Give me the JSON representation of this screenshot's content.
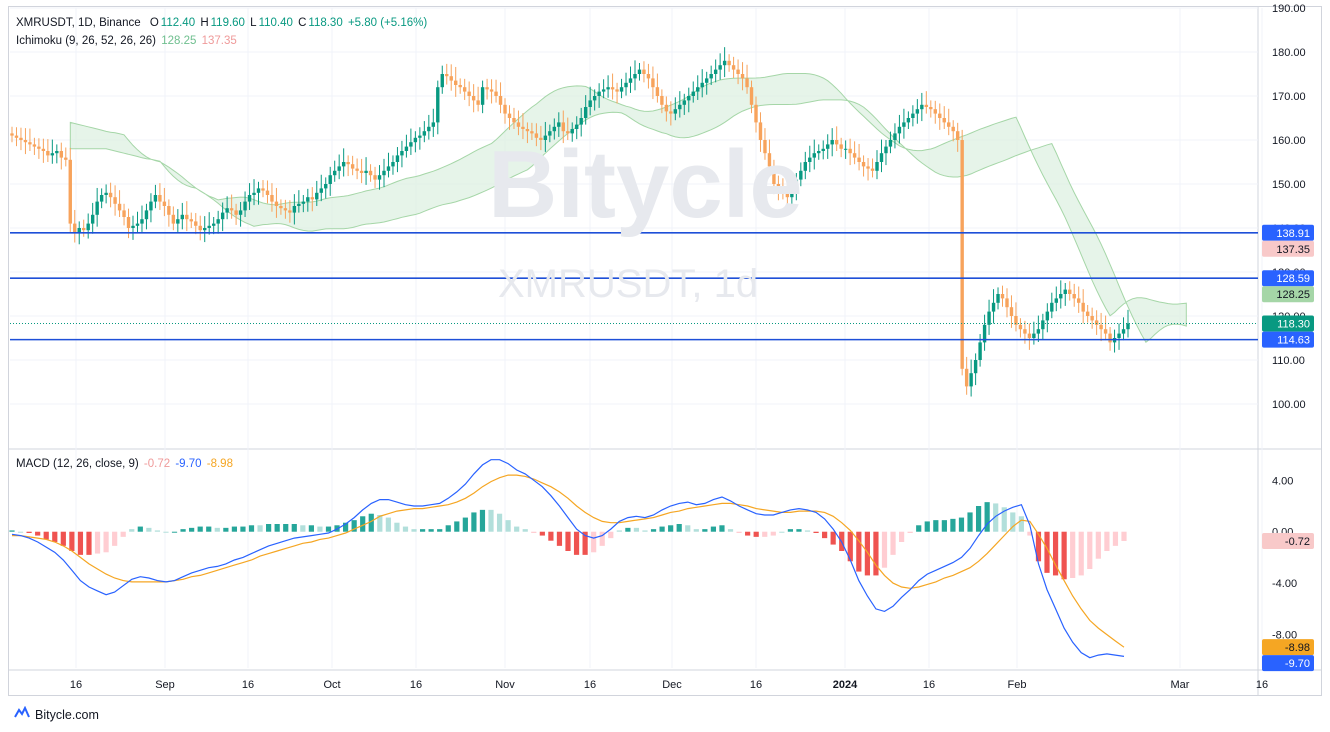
{
  "header": {
    "symbol": "XMRUSDT, 1D, Binance",
    "open_label": "O",
    "open": "112.40",
    "high_label": "H",
    "high": "119.60",
    "low_label": "L",
    "low": "110.40",
    "close_label": "C",
    "close": "118.30",
    "change": "+5.80 (+5.16%)"
  },
  "ichimoku_legend": {
    "label": "Ichimoku (9, 26, 52, 26, 26)",
    "v1": "128.25",
    "v2": "137.35"
  },
  "macd_legend": {
    "label": "MACD (12, 26, close, 9)",
    "hist": "-0.72",
    "macd": "-9.70",
    "signal": "-8.98"
  },
  "watermark": {
    "brand": "Bitycle",
    "symbol": "XMRUSDT, 1d"
  },
  "footer": {
    "brand": "Bitycle.com"
  },
  "colors": {
    "up": "#089981",
    "down": "#f7a35c",
    "line": "#1e4fd8",
    "cloud_up": "#dcefdf",
    "cloud_down": "#fbdcdc",
    "macd": "#2962ff",
    "signal": "#f5a623"
  },
  "chart_data": [
    {
      "type": "candlestick",
      "title": "XMRUSDT, 1D, Binance",
      "x_ticks": [
        "16",
        "Sep",
        "16",
        "Oct",
        "16",
        "Nov",
        "16",
        "Dec",
        "16",
        "2024",
        "16",
        "Feb",
        "Mar",
        "16"
      ],
      "y_ticks": [
        "100.00",
        "110.00",
        "120.00",
        "130.00",
        "140.00",
        "150.00",
        "160.00",
        "170.00",
        "180.00",
        "190.00"
      ],
      "ylim": [
        90,
        190
      ],
      "grid": true,
      "horizontal_levels": [
        138.91,
        128.59,
        114.63
      ],
      "price_tags": [
        {
          "label": "138.91",
          "value": 138.91,
          "bg": "#2962ff",
          "fg": "#ffffff"
        },
        {
          "label": "137.35",
          "value": 137.35,
          "bg": "#f8c9c9",
          "fg": "#131722"
        },
        {
          "label": "128.59",
          "value": 128.59,
          "bg": "#2962ff",
          "fg": "#ffffff"
        },
        {
          "label": "128.25",
          "value": 128.25,
          "bg": "#a5d6a7",
          "fg": "#131722"
        },
        {
          "label": "118.30",
          "value": 118.3,
          "bg": "#089981",
          "fg": "#ffffff"
        },
        {
          "label": "114.63",
          "value": 114.63,
          "bg": "#2962ff",
          "fg": "#ffffff"
        }
      ],
      "last_close": 118.3,
      "close_series": [
        161,
        160.5,
        160,
        159.5,
        159,
        158.5,
        158,
        157.5,
        156.5,
        157,
        157.5,
        156,
        155.5,
        141,
        139,
        140,
        139.5,
        141,
        143,
        146,
        147.5,
        148,
        147,
        145.5,
        144,
        142.5,
        140,
        140.5,
        141,
        142,
        144,
        146,
        147.5,
        146,
        145,
        143,
        141,
        142,
        143,
        142,
        141.5,
        140.5,
        139.5,
        140,
        140.5,
        141,
        142,
        143.5,
        144.5,
        144,
        143,
        144,
        146,
        147.5,
        148,
        149,
        148.5,
        147.5,
        146,
        145,
        144.5,
        144,
        143.5,
        145,
        145.5,
        146,
        147,
        146.5,
        148,
        149,
        150,
        152,
        153,
        154,
        155,
        154.5,
        153.5,
        153,
        152.5,
        153,
        152,
        151,
        152,
        153,
        154,
        155,
        156.5,
        157.5,
        158.5,
        159.5,
        160.5,
        161,
        162,
        163,
        164,
        172,
        175,
        174.5,
        173.5,
        172.5,
        172,
        171,
        170,
        169,
        168,
        172,
        171.5,
        171,
        170,
        168,
        166,
        165,
        164,
        163,
        162.5,
        162,
        161.5,
        160.5,
        160,
        161,
        162,
        163,
        164,
        162,
        161.5,
        162.5,
        163.5,
        165,
        167.5,
        169,
        170,
        171,
        171.5,
        172,
        171.5,
        171,
        172,
        173,
        174,
        175,
        176,
        175,
        174,
        172,
        170,
        168,
        166.5,
        166,
        167,
        168,
        169,
        170,
        171,
        172,
        173,
        174,
        175,
        176,
        177,
        178,
        177,
        176,
        175,
        174,
        172,
        168,
        164,
        160,
        157,
        154,
        150,
        149,
        148,
        147,
        149,
        151,
        153,
        155,
        156,
        157,
        157.5,
        158,
        159,
        160,
        159,
        158,
        158,
        157,
        156,
        155,
        154,
        153.5,
        153,
        155,
        157,
        158.5,
        160,
        161.5,
        163,
        164,
        165,
        166,
        167,
        168,
        167.5,
        167,
        166,
        165,
        164,
        163,
        162,
        160,
        108,
        104,
        107,
        110,
        114,
        118,
        121,
        123,
        125,
        124,
        122,
        120,
        118,
        117,
        116,
        115,
        116,
        117,
        119,
        121,
        123,
        124,
        125,
        126,
        125,
        124,
        123,
        121,
        120,
        119,
        118,
        117,
        116,
        114,
        115,
        116,
        117,
        118.3
      ]
    },
    {
      "type": "line",
      "title": "MACD (12, 26, close, 9)",
      "y_ticks": [
        "-8.00",
        "-4.00",
        "0.00",
        "4.00"
      ],
      "ylim": [
        -10.6,
        6.2
      ],
      "price_tags": [
        {
          "label": "-0.72",
          "value": -0.72,
          "bg": "#f8c9c9",
          "fg": "#131722"
        },
        {
          "label": "-8.98",
          "value": -8.98,
          "bg": "#f5a623",
          "fg": "#131722"
        },
        {
          "label": "-9.70",
          "value": -9.7,
          "bg": "#2962ff",
          "fg": "#ffffff"
        }
      ],
      "series": [
        {
          "name": "MACD",
          "values": [
            -0.2,
            -0.3,
            -0.5,
            -0.8,
            -1.2,
            -1.6,
            -2.2,
            -3.0,
            -3.8,
            -4.3,
            -4.6,
            -4.9,
            -4.7,
            -4.2,
            -3.7,
            -3.5,
            -3.6,
            -3.8,
            -3.9,
            -3.8,
            -3.5,
            -3.2,
            -3.0,
            -2.8,
            -2.7,
            -2.5,
            -2.2,
            -2.0,
            -1.7,
            -1.4,
            -1.1,
            -0.9,
            -0.7,
            -0.5,
            -0.4,
            -0.3,
            -0.2,
            -0.1,
            0.2,
            0.6,
            1.1,
            1.7,
            2.2,
            2.5,
            2.5,
            2.3,
            2.1,
            2.0,
            2.0,
            2.1,
            2.2,
            2.6,
            3.1,
            3.7,
            4.5,
            5.2,
            5.6,
            5.6,
            5.3,
            4.8,
            4.5,
            4.0,
            3.5,
            2.8,
            2.0,
            1.1,
            0.2,
            -0.3,
            -0.5,
            -0.3,
            0.2,
            0.8,
            1.1,
            1.2,
            1.1,
            1.3,
            1.7,
            2.0,
            2.2,
            2.3,
            2.1,
            2.2,
            2.5,
            2.7,
            2.4,
            2.0,
            1.7,
            1.4,
            1.3,
            1.3,
            1.5,
            1.7,
            1.8,
            1.7,
            1.5,
            1.0,
            0.2,
            -0.8,
            -2.2,
            -3.8,
            -5.0,
            -6.0,
            -6.2,
            -5.8,
            -5.1,
            -4.5,
            -3.8,
            -3.3,
            -3.0,
            -2.7,
            -2.4,
            -2.0,
            -1.3,
            -0.3,
            0.6,
            1.2,
            1.6,
            1.9,
            2.1,
            0.5,
            -2.5,
            -4.5,
            -6.0,
            -7.5,
            -8.6,
            -9.4,
            -9.8,
            -9.6,
            -9.5,
            -9.6,
            -9.7
          ]
        },
        {
          "name": "Signal",
          "values": [
            -0.3,
            -0.3,
            -0.4,
            -0.5,
            -0.6,
            -0.8,
            -1.1,
            -1.5,
            -2.0,
            -2.5,
            -2.9,
            -3.3,
            -3.6,
            -3.8,
            -3.9,
            -3.9,
            -3.9,
            -3.9,
            -3.9,
            -3.8,
            -3.7,
            -3.5,
            -3.4,
            -3.2,
            -3.0,
            -2.8,
            -2.6,
            -2.4,
            -2.2,
            -1.9,
            -1.7,
            -1.5,
            -1.3,
            -1.1,
            -0.9,
            -0.8,
            -0.6,
            -0.5,
            -0.3,
            -0.1,
            0.2,
            0.5,
            0.8,
            1.2,
            1.4,
            1.6,
            1.7,
            1.8,
            1.8,
            1.9,
            2.0,
            2.1,
            2.3,
            2.6,
            3.0,
            3.5,
            3.9,
            4.2,
            4.4,
            4.4,
            4.3,
            4.1,
            3.8,
            3.5,
            3.1,
            2.6,
            2.0,
            1.5,
            1.1,
            0.8,
            0.7,
            0.7,
            0.8,
            0.9,
            1.0,
            1.1,
            1.3,
            1.5,
            1.6,
            1.8,
            1.9,
            2.0,
            2.1,
            2.2,
            2.2,
            2.1,
            2.0,
            1.8,
            1.7,
            1.6,
            1.5,
            1.5,
            1.6,
            1.6,
            1.6,
            1.5,
            1.2,
            0.7,
            0.1,
            -0.7,
            -1.6,
            -2.6,
            -3.4,
            -4.0,
            -4.3,
            -4.4,
            -4.3,
            -4.1,
            -3.9,
            -3.6,
            -3.4,
            -3.1,
            -2.8,
            -2.3,
            -1.7,
            -1.0,
            -0.3,
            0.4,
            0.9,
            0.8,
            -0.2,
            -1.3,
            -2.6,
            -3.8,
            -5.0,
            -6.0,
            -6.9,
            -7.5,
            -8.0,
            -8.5,
            -8.98
          ]
        }
      ]
    }
  ]
}
